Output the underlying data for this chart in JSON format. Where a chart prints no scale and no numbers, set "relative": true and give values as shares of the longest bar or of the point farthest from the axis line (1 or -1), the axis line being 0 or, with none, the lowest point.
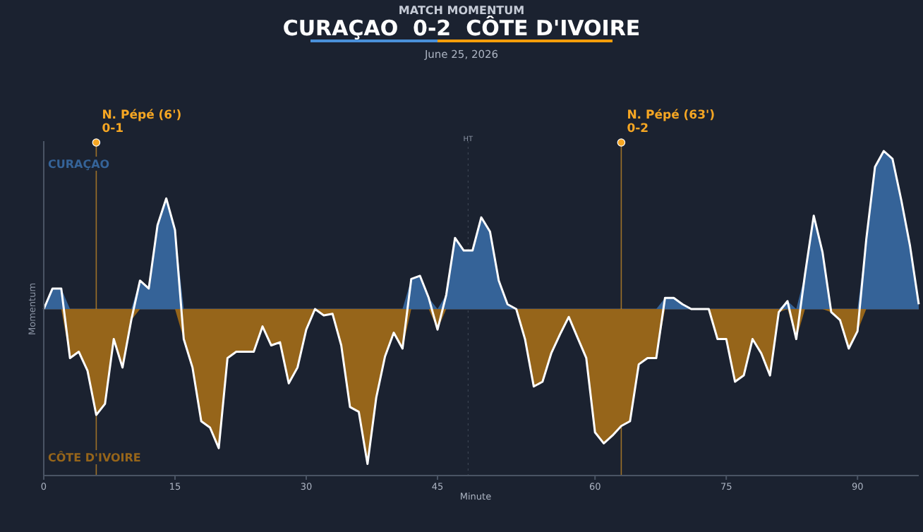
{
  "chart_data": {
    "type": "area",
    "title": "CURAÇAO  0-2  CÔTE D'IVOIRE",
    "subtitle": "MATCH MOMENTUM",
    "annotations": [
      "June 25, 2026",
      "N. Pépé (6')\n0-1",
      "HT",
      "N. Pépé (63')\n0-2"
    ],
    "xlabel": "Minute",
    "ylabel": "Momentum",
    "relative": true,
    "categories": [
      "0",
      null,
      null,
      null,
      null,
      null,
      null,
      null,
      null,
      null,
      null,
      null,
      null,
      null,
      null,
      "15",
      null,
      null,
      null,
      null,
      null,
      null,
      null,
      null,
      null,
      null,
      null,
      null,
      null,
      null,
      "30",
      null,
      null,
      null,
      null,
      null,
      null,
      null,
      null,
      null,
      null,
      null,
      null,
      null,
      null,
      "45",
      null,
      null,
      null,
      null,
      null,
      null,
      null,
      null,
      null,
      null,
      null,
      null,
      null,
      null,
      null,
      null,
      null,
      "60",
      null,
      null,
      null,
      null,
      null,
      null,
      null,
      null,
      null,
      null,
      null,
      null,
      null,
      null,
      "75",
      null,
      null,
      null,
      null,
      null,
      null,
      null,
      null,
      null,
      null,
      null,
      null,
      null,
      null,
      "90",
      null,
      null,
      null,
      null,
      null,
      null,
      null
    ],
    "series": [
      {
        "name": "CURAÇAO",
        "color": "#356398",
        "values": [
          0,
          0.13,
          0.13,
          0,
          0,
          0,
          0,
          0,
          0,
          0,
          0,
          0.18,
          0.13,
          0.53,
          0.7,
          0.5,
          0,
          0,
          0,
          0,
          0,
          0,
          0,
          0,
          0,
          0,
          0,
          0,
          0,
          0,
          0,
          0,
          0,
          0,
          0,
          0,
          0,
          0,
          0,
          0,
          0,
          0,
          0.19,
          0.21,
          0.07,
          0,
          0.09,
          0.45,
          0.37,
          0.37,
          0.58,
          0.49,
          0.18,
          0.03,
          0,
          0,
          0,
          0,
          0,
          0,
          0,
          0,
          0,
          0,
          0,
          0,
          0,
          0,
          0,
          0,
          0,
          0.07,
          0.07,
          0.03,
          0,
          0,
          0,
          0,
          0,
          0,
          0,
          0,
          0,
          0,
          0,
          0.05,
          0,
          0.22,
          0.59,
          0.36,
          0,
          0,
          0,
          0,
          0.44,
          0.9,
          1,
          0.95,
          0.69,
          0.4,
          0.03
        ]
      },
      {
        "name": "CÔTE D'IVOIRE",
        "color": "#96651a",
        "values": [
          0,
          0,
          0,
          -0.31,
          -0.27,
          -0.39,
          -0.67,
          -0.6,
          -0.19,
          -0.37,
          -0.07,
          0,
          0,
          0,
          0,
          0,
          -0.19,
          -0.37,
          -0.71,
          -0.75,
          -0.88,
          -0.31,
          -0.27,
          -0.27,
          -0.27,
          -0.11,
          -0.23,
          -0.21,
          -0.47,
          -0.37,
          -0.13,
          0,
          -0.04,
          -0.03,
          -0.23,
          -0.62,
          -0.65,
          -0.98,
          -0.56,
          -0.3,
          -0.15,
          -0.25,
          0,
          0,
          0,
          -0.13,
          0,
          0,
          0,
          0,
          0,
          0,
          0,
          0,
          0,
          -0.19,
          -0.49,
          -0.46,
          -0.28,
          -0.16,
          -0.05,
          -0.18,
          -0.31,
          -0.78,
          -0.85,
          -0.8,
          -0.74,
          -0.71,
          -0.35,
          -0.31,
          -0.31,
          0,
          0,
          0,
          0,
          0,
          0,
          -0.19,
          -0.19,
          -0.46,
          -0.42,
          -0.19,
          -0.28,
          -0.42,
          -0.02,
          0,
          -0.19,
          0,
          0,
          0,
          -0.02,
          -0.07,
          -0.25,
          -0.14,
          0,
          0,
          0,
          0,
          0,
          0,
          0
        ]
      },
      {
        "type": "line",
        "color": "#ffffff",
        "values": [
          0,
          0.13,
          0.13,
          -0.31,
          -0.27,
          -0.39,
          -0.67,
          -0.6,
          -0.19,
          -0.37,
          -0.07,
          0.18,
          0.13,
          0.53,
          0.7,
          0.5,
          -0.19,
          -0.37,
          -0.71,
          -0.75,
          -0.88,
          -0.31,
          -0.27,
          -0.27,
          -0.27,
          -0.11,
          -0.23,
          -0.21,
          -0.47,
          -0.37,
          -0.13,
          0,
          -0.04,
          -0.03,
          -0.23,
          -0.62,
          -0.65,
          -0.98,
          -0.56,
          -0.3,
          -0.15,
          -0.25,
          0.19,
          0.21,
          0.07,
          -0.13,
          0.09,
          0.45,
          0.37,
          0.37,
          0.58,
          0.49,
          0.18,
          0.03,
          0,
          -0.19,
          -0.49,
          -0.46,
          -0.28,
          -0.16,
          -0.05,
          -0.18,
          -0.31,
          -0.78,
          -0.85,
          -0.8,
          -0.74,
          -0.71,
          -0.35,
          -0.31,
          -0.31,
          0.07,
          0.07,
          0.03,
          0,
          0,
          0,
          -0.19,
          -0.19,
          -0.46,
          -0.42,
          -0.19,
          -0.28,
          -0.42,
          -0.02,
          0.05,
          -0.19,
          0.22,
          0.59,
          0.36,
          -0.02,
          -0.07,
          -0.25,
          -0.14,
          0.44,
          0.9,
          1,
          0.95,
          0.69,
          0.4,
          0.03
        ]
      }
    ]
  }
}
